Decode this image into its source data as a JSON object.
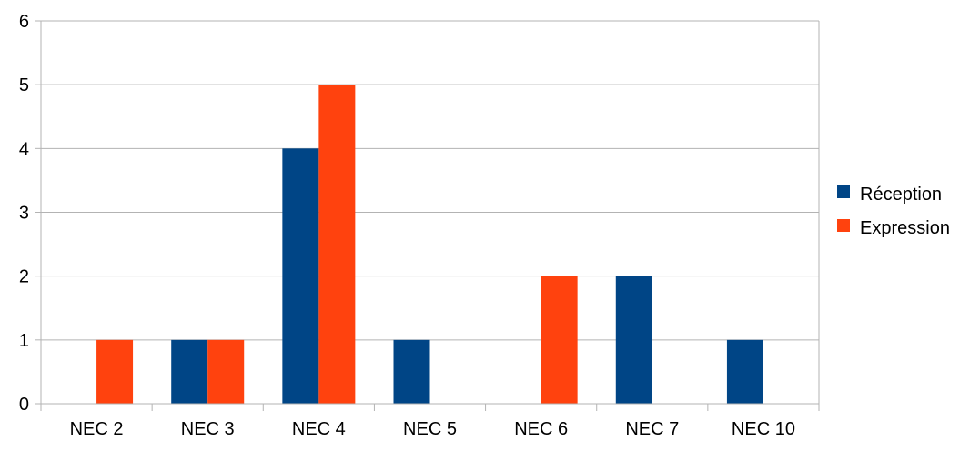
{
  "chart_data": {
    "type": "bar",
    "title": "",
    "xlabel": "",
    "ylabel": "",
    "ylim": [
      0,
      6
    ],
    "yticks": [
      "0",
      "1",
      "2",
      "3",
      "4",
      "5",
      "6"
    ],
    "grid": true,
    "legend_position": "right",
    "categories": [
      "NEC 2",
      "NEC 3",
      "NEC 4",
      "NEC 5",
      "NEC 6",
      "NEC 7",
      "NEC 10"
    ],
    "series": [
      {
        "name": "Réception",
        "color": "#004586",
        "values": [
          0,
          1,
          4,
          1,
          0,
          2,
          1
        ]
      },
      {
        "name": "Expression",
        "color": "#ff420e",
        "values": [
          1,
          1,
          5,
          0,
          2,
          0,
          0
        ]
      }
    ]
  }
}
